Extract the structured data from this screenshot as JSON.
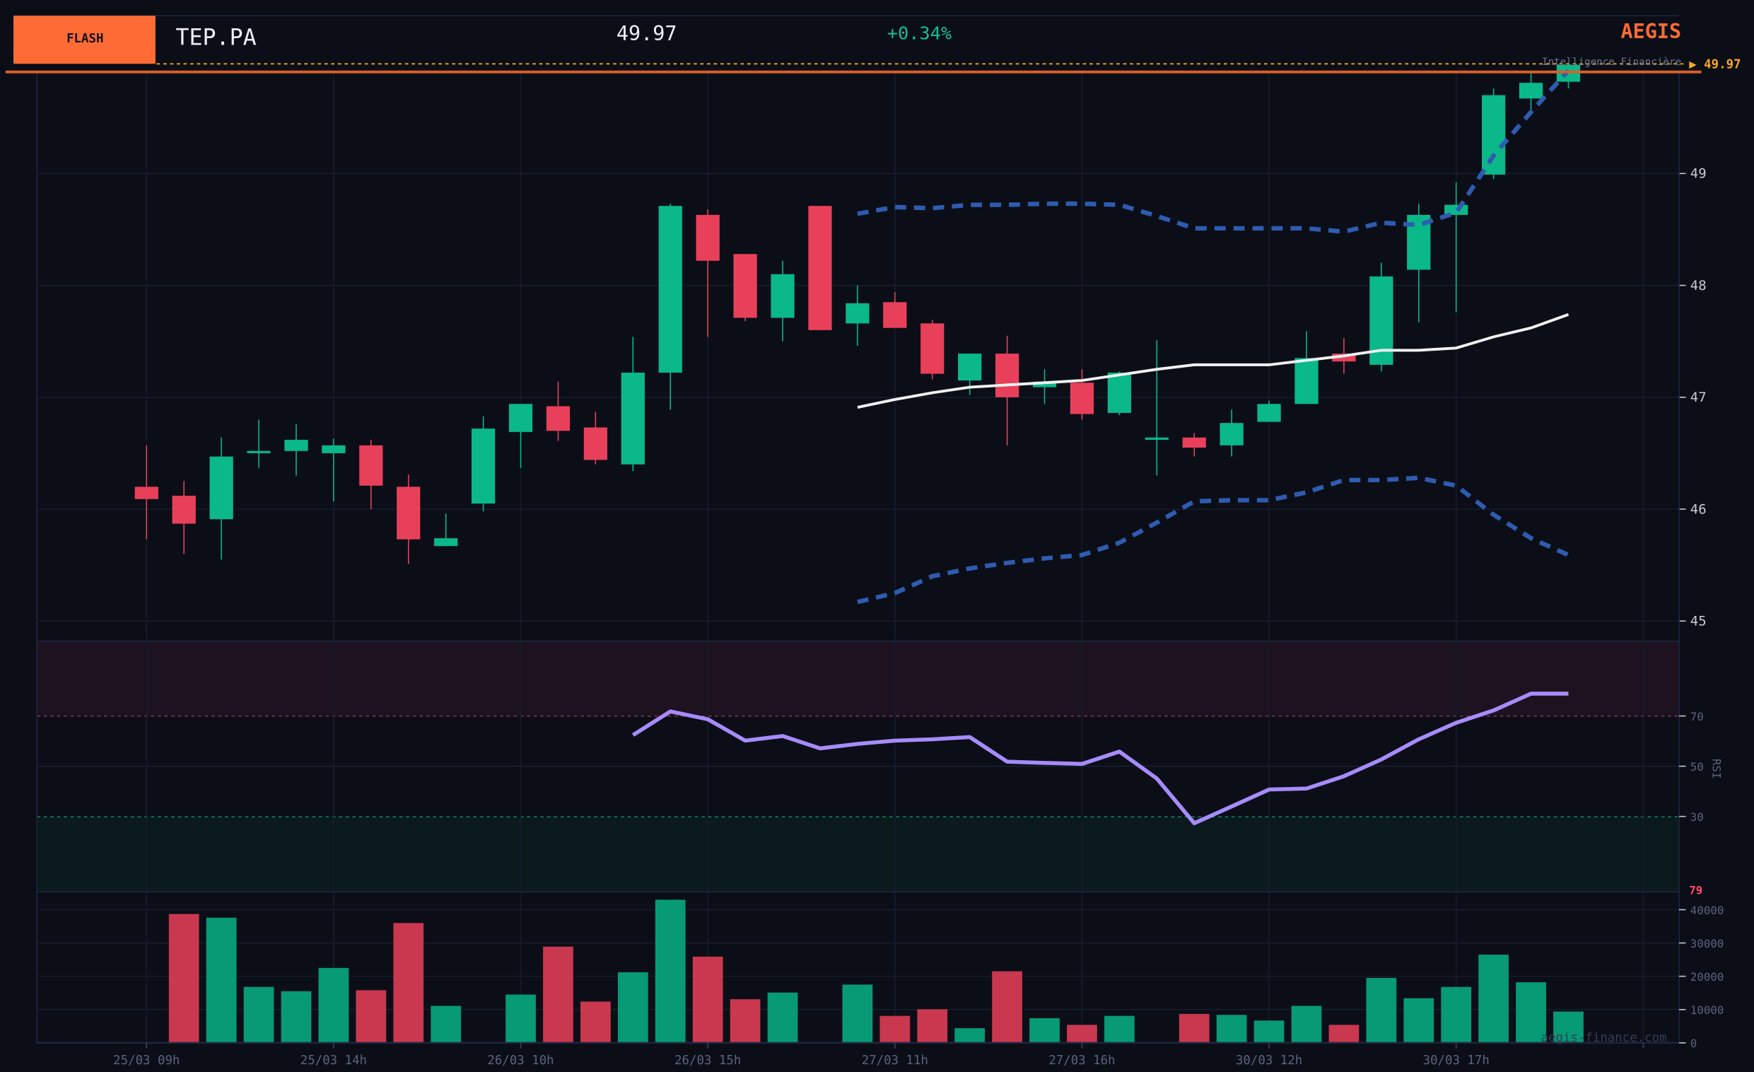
{
  "header": {
    "badge": "FLASH",
    "ticker": "TEP.PA",
    "price": "49.97",
    "change": "+0.34%",
    "brand": "AEGIS",
    "brand_subtitle": "Intelligence Financière",
    "last_price_tag": "▶ 49.97",
    "watermark": "aegis-finance.com"
  },
  "colors": {
    "up": "#0ab88a",
    "down": "#e8405a",
    "vol_up": "#079a74",
    "vol_down": "#c9384f",
    "badge": "#ff6b35",
    "accent_orange": "#f5a623",
    "band": "#2f5bb0",
    "sma": "#f0f0f0",
    "rsi": "#a78bfa",
    "rsi_label": "#ff4d6a",
    "background": "#0b0e17"
  },
  "chart_data": [
    {
      "type": "candlestick",
      "panel": "price",
      "ylim": [
        44.9,
        49.9
      ],
      "yticks": [
        45,
        46,
        47,
        48,
        49
      ],
      "xtick_labels": [
        "25/03 09h",
        "25/03 14h",
        "26/03 10h",
        "26/03 15h",
        "27/03 11h",
        "27/03 16h",
        "30/03 12h",
        "30/03 17h"
      ],
      "xtick_index": [
        0,
        5,
        10,
        15,
        20,
        25,
        30,
        35
      ],
      "grid": true,
      "last_price": 49.97,
      "ohlc": [
        [
          46.2,
          46.57,
          45.73,
          46.09
        ],
        [
          46.12,
          46.25,
          45.6,
          45.87
        ],
        [
          45.91,
          46.64,
          45.55,
          46.47
        ],
        [
          46.5,
          46.8,
          46.37,
          46.52
        ],
        [
          46.52,
          46.76,
          46.3,
          46.62
        ],
        [
          46.5,
          46.63,
          46.07,
          46.57
        ],
        [
          46.57,
          46.62,
          46.0,
          46.21
        ],
        [
          46.2,
          46.31,
          45.51,
          45.73
        ],
        [
          45.67,
          45.96,
          45.67,
          45.74
        ],
        [
          46.05,
          46.83,
          45.98,
          46.72
        ],
        [
          46.69,
          46.94,
          46.37,
          46.94
        ],
        [
          46.92,
          47.14,
          46.61,
          46.7
        ],
        [
          46.73,
          46.87,
          46.4,
          46.44
        ],
        [
          46.4,
          47.54,
          46.34,
          47.22
        ],
        [
          47.22,
          48.73,
          46.89,
          48.71
        ],
        [
          48.63,
          48.68,
          47.54,
          48.22
        ],
        [
          48.28,
          48.28,
          47.68,
          47.71
        ],
        [
          47.71,
          48.22,
          47.5,
          48.1
        ],
        [
          48.71,
          48.71,
          47.6,
          47.6
        ],
        [
          47.66,
          48.0,
          47.46,
          47.84
        ],
        [
          47.85,
          47.94,
          47.62,
          47.62
        ],
        [
          47.66,
          47.69,
          47.16,
          47.21
        ],
        [
          47.15,
          47.39,
          47.02,
          47.39
        ],
        [
          47.39,
          47.55,
          46.57,
          47.0
        ],
        [
          47.09,
          47.25,
          46.94,
          47.14
        ],
        [
          47.13,
          47.25,
          46.8,
          46.85
        ],
        [
          46.86,
          47.23,
          46.84,
          47.22
        ],
        [
          46.62,
          47.51,
          46.3,
          46.64
        ],
        [
          46.64,
          46.68,
          46.47,
          46.55
        ],
        [
          46.57,
          46.89,
          46.47,
          46.77
        ],
        [
          46.78,
          46.97,
          46.78,
          46.94
        ],
        [
          46.94,
          47.59,
          46.94,
          47.35
        ],
        [
          47.39,
          47.53,
          47.21,
          47.32
        ],
        [
          47.29,
          48.2,
          47.23,
          48.08
        ],
        [
          48.14,
          48.73,
          47.67,
          48.63
        ],
        [
          48.63,
          48.92,
          47.76,
          48.72
        ],
        [
          48.99,
          49.76,
          48.95,
          49.7
        ],
        [
          49.67,
          49.92,
          49.55,
          49.81
        ],
        [
          49.82,
          50.14,
          49.76,
          49.97
        ]
      ],
      "overlay_start_index": 19,
      "sma": [
        46.91,
        46.98,
        47.04,
        47.09,
        47.11,
        47.13,
        47.15,
        47.2,
        47.25,
        47.29,
        47.29,
        47.29,
        47.33,
        47.37,
        47.42,
        47.42,
        47.44,
        47.54,
        47.62,
        47.74
      ],
      "bollinger_upper": [
        48.64,
        48.7,
        48.69,
        48.72,
        48.72,
        48.73,
        48.73,
        48.72,
        48.62,
        48.51,
        48.51,
        48.51,
        48.51,
        48.48,
        48.56,
        48.54,
        48.65,
        49.16,
        49.55,
        49.92
      ],
      "bollinger_lower": [
        45.17,
        45.25,
        45.4,
        45.47,
        45.52,
        45.56,
        45.59,
        45.7,
        45.88,
        46.07,
        46.08,
        46.08,
        46.15,
        46.26,
        46.26,
        46.28,
        46.21,
        45.95,
        45.74,
        45.59
      ]
    },
    {
      "type": "line",
      "panel": "rsi",
      "ylabel": "RSI",
      "ylim": [
        0,
        100
      ],
      "yticks": [
        30,
        50,
        70
      ],
      "overbought": 70,
      "oversold": 30,
      "start_index": 13,
      "values": [
        62.4,
        71.8,
        68.7,
        60.2,
        62.0,
        57.1,
        58.9,
        60.2,
        60.7,
        61.6,
        51.8,
        51.3,
        50.9,
        55.8,
        45.1,
        27.3,
        34.0,
        40.7,
        41.1,
        46.0,
        52.7,
        60.7,
        67.3,
        72.2,
        78.9,
        78.9
      ],
      "last_label": "79"
    },
    {
      "type": "bar",
      "panel": "volume",
      "ylim": [
        0,
        45000
      ],
      "yticks": [
        0,
        10000,
        20000,
        30000,
        40000
      ],
      "values": [
        0,
        38700,
        37600,
        16800,
        15500,
        22500,
        15800,
        36000,
        11100,
        0,
        14500,
        28900,
        12400,
        21200,
        43000,
        25900,
        13100,
        15100,
        0,
        17500,
        8100,
        10100,
        4400,
        21500,
        7400,
        5400,
        8100,
        0,
        8700,
        8400,
        6700,
        11100,
        5400,
        19500,
        13400,
        16800,
        26500,
        18200,
        9400
      ],
      "direction": [
        "d",
        "d",
        "u",
        "u",
        "u",
        "u",
        "d",
        "d",
        "u",
        "u",
        "u",
        "d",
        "d",
        "u",
        "u",
        "d",
        "d",
        "u",
        "d",
        "u",
        "d",
        "d",
        "u",
        "d",
        "u",
        "d",
        "u",
        "u",
        "d",
        "u",
        "u",
        "u",
        "d",
        "u",
        "u",
        "u",
        "u",
        "u",
        "u"
      ]
    }
  ]
}
